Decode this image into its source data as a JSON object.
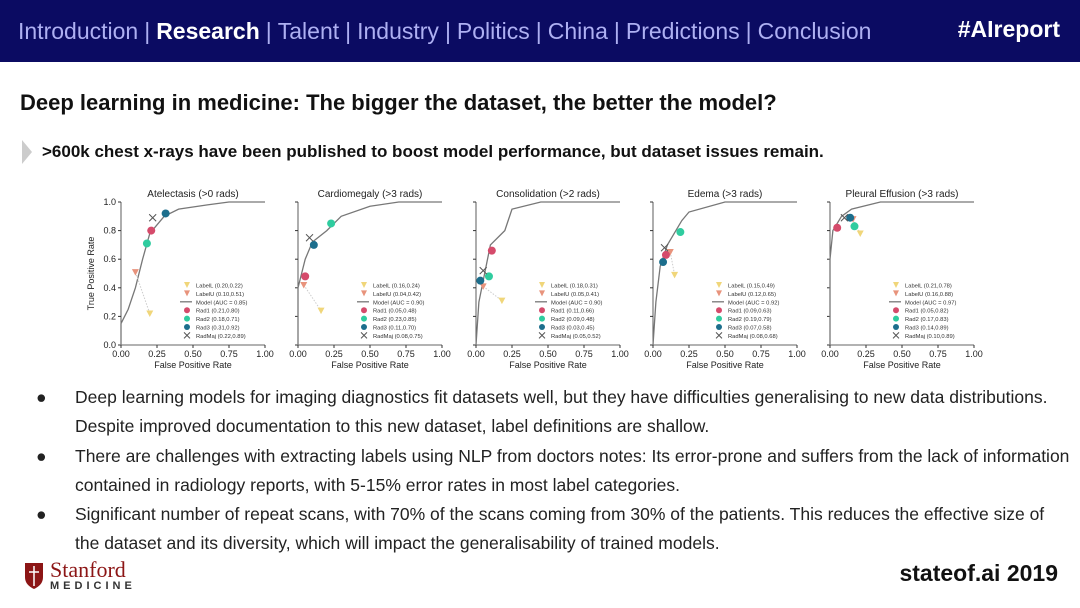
{
  "header": {
    "nav": [
      "Introduction",
      "Research",
      "Talent",
      "Industry",
      "Politics",
      "China",
      "Predictions",
      "Conclusion"
    ],
    "active": "Research",
    "hashtag": "#AIreport",
    "bg": "#0b0b62"
  },
  "title": "Deep learning in medicine: The bigger the dataset, the better the model?",
  "subtitle": ">600k chest x-rays have been published to boost model performance, but dataset issues remain.",
  "bullets": [
    "Deep learning models for imaging diagnostics fit datasets well, but they have difficulties generalising to new data distributions. Despite improved documentation to this new dataset, label definitions are shallow.",
    "There are challenges with extracting labels using NLP from doctors notes: Its error-prone and suffers from the lack of information contained in radiology reports, with 5-15% error rates in most label categories.",
    "Significant number of repeat scans, with 70% of the scans coming from 30% of the patients. This reduces the effective size of the dataset and its diversity, which will impact the generalisability of trained models."
  ],
  "footer": {
    "logo_name": "Stanford",
    "logo_sub": "MEDICINE",
    "site": "stateof.ai 2019"
  },
  "chart_data": [
    {
      "type": "line",
      "title": "Atelectasis (>0 rads)",
      "xlabel": "False Positive Rate",
      "ylabel": "True Positive Rate",
      "xlim": [
        0,
        1
      ],
      "ylim": [
        0,
        1
      ],
      "xticks": [
        "0.00",
        "0.25",
        "0.50",
        "0.75",
        "1.00"
      ],
      "yticks": [
        "0.0",
        "0.2",
        "0.4",
        "0.6",
        "0.8",
        "1.0"
      ],
      "legend": "bottom-right",
      "curve": [
        [
          0,
          0
        ],
        [
          0,
          0.15
        ],
        [
          0.05,
          0.25
        ],
        [
          0.1,
          0.4
        ],
        [
          0.15,
          0.6
        ],
        [
          0.2,
          0.78
        ],
        [
          0.3,
          0.9
        ],
        [
          0.4,
          0.95
        ],
        [
          0.6,
          0.98
        ],
        [
          0.75,
          1
        ],
        [
          1,
          1
        ]
      ],
      "auc": "Model (AUC = 0.85)",
      "points": {
        "LabelL": [
          0.2,
          0.22
        ],
        "LabelU": [
          0.1,
          0.51
        ],
        "Rad1": [
          0.21,
          0.8
        ],
        "Rad2": [
          0.18,
          0.71
        ],
        "Rad3": [
          0.31,
          0.92
        ],
        "RadMaj": [
          0.22,
          0.89
        ]
      }
    },
    {
      "type": "line",
      "title": "Cardiomegaly (>3 rads)",
      "xlabel": "False Positive Rate",
      "xlim": [
        0,
        1
      ],
      "ylim": [
        0,
        1
      ],
      "xticks": [
        "0.00",
        "0.25",
        "0.50",
        "0.75",
        "1.00"
      ],
      "legend": "bottom-right",
      "curve": [
        [
          0,
          0
        ],
        [
          0,
          0.4
        ],
        [
          0.05,
          0.6
        ],
        [
          0.1,
          0.72
        ],
        [
          0.2,
          0.8
        ],
        [
          0.3,
          0.9
        ],
        [
          0.5,
          0.97
        ],
        [
          0.7,
          1
        ],
        [
          1,
          1
        ]
      ],
      "auc": "Model (AUC = 0.90)",
      "points": {
        "LabelL": [
          0.16,
          0.24
        ],
        "LabelU": [
          0.04,
          0.42
        ],
        "Rad1": [
          0.05,
          0.48
        ],
        "Rad2": [
          0.23,
          0.85
        ],
        "Rad3": [
          0.11,
          0.7
        ],
        "RadMaj": [
          0.08,
          0.75
        ]
      }
    },
    {
      "type": "line",
      "title": "Consolidation (>2 rads)",
      "xlabel": "False Positive Rate",
      "xlim": [
        0,
        1
      ],
      "ylim": [
        0,
        1
      ],
      "xticks": [
        "0.00",
        "0.25",
        "0.50",
        "0.75",
        "1.00"
      ],
      "legend": "bottom-right",
      "curve": [
        [
          0,
          0
        ],
        [
          0.02,
          0.3
        ],
        [
          0.05,
          0.45
        ],
        [
          0.1,
          0.7
        ],
        [
          0.2,
          0.8
        ],
        [
          0.25,
          0.95
        ],
        [
          0.45,
          1
        ],
        [
          1,
          1
        ]
      ],
      "auc": "Model (AUC = 0.90)",
      "points": {
        "LabelL": [
          0.18,
          0.31
        ],
        "LabelU": [
          0.05,
          0.41
        ],
        "Rad1": [
          0.11,
          0.66
        ],
        "Rad2": [
          0.09,
          0.48
        ],
        "Rad3": [
          0.03,
          0.45
        ],
        "RadMaj": [
          0.05,
          0.52
        ]
      }
    },
    {
      "type": "line",
      "title": "Edema (>3 rads)",
      "xlabel": "False Positive Rate",
      "xlim": [
        0,
        1
      ],
      "ylim": [
        0,
        1
      ],
      "xticks": [
        "0.00",
        "0.25",
        "0.50",
        "0.75",
        "1.00"
      ],
      "legend": "bottom-right",
      "curve": [
        [
          0,
          0
        ],
        [
          0.02,
          0.3
        ],
        [
          0.05,
          0.55
        ],
        [
          0.1,
          0.7
        ],
        [
          0.2,
          0.87
        ],
        [
          0.25,
          0.93
        ],
        [
          0.5,
          1
        ],
        [
          1,
          1
        ]
      ],
      "auc": "Model (AUC = 0.92)",
      "points": {
        "LabelL": [
          0.15,
          0.49
        ],
        "LabelU": [
          0.12,
          0.65
        ],
        "Rad1": [
          0.09,
          0.63
        ],
        "Rad2": [
          0.19,
          0.79
        ],
        "Rad3": [
          0.07,
          0.58
        ],
        "RadMaj": [
          0.08,
          0.68
        ]
      }
    },
    {
      "type": "line",
      "title": "Pleural Effusion (>3 rads)",
      "xlabel": "False Positive Rate",
      "xlim": [
        0,
        1
      ],
      "ylim": [
        0,
        1
      ],
      "xticks": [
        "0.00",
        "0.25",
        "0.50",
        "0.75",
        "1.00"
      ],
      "legend": "bottom-right",
      "curve": [
        [
          0,
          0
        ],
        [
          0,
          0.6
        ],
        [
          0.02,
          0.8
        ],
        [
          0.08,
          0.9
        ],
        [
          0.15,
          0.95
        ],
        [
          0.35,
          1
        ],
        [
          1,
          1
        ]
      ],
      "auc": "Model (AUC = 0.97)",
      "points": {
        "LabelL": [
          0.21,
          0.78
        ],
        "LabelU": [
          0.16,
          0.88
        ],
        "Rad1": [
          0.05,
          0.82
        ],
        "Rad2": [
          0.17,
          0.83
        ],
        "Rad3": [
          0.14,
          0.89
        ],
        "RadMaj": [
          0.1,
          0.89
        ]
      }
    }
  ],
  "colors": {
    "LabelL": "#f0d67a",
    "LabelU": "#e8937c",
    "Model": "#777777",
    "Rad1": "#d54b6b",
    "Rad2": "#2fcc9f",
    "Rad3": "#1c6e8c",
    "RadMaj": "#555555"
  }
}
